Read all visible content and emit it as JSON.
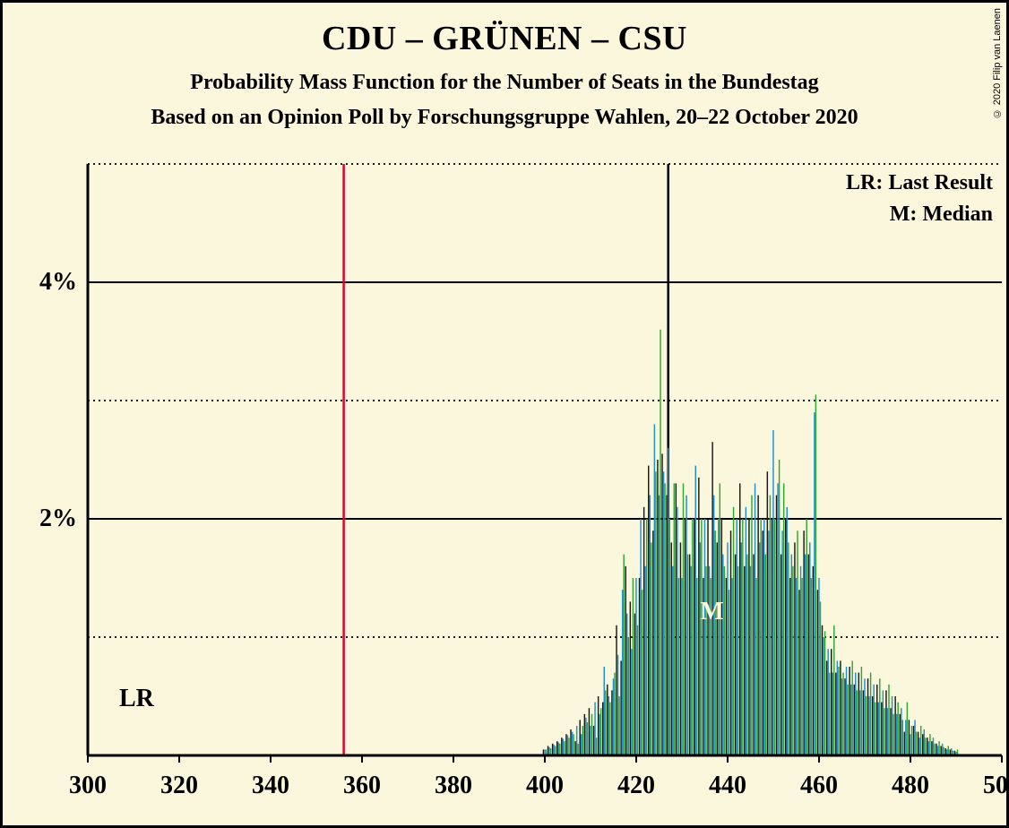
{
  "chart": {
    "type": "bar",
    "background_color": "#fbf7dc",
    "text_color": "#1a1a1a",
    "title": "CDU – GRÜNEN – CSU",
    "title_fontsize": 38,
    "subtitle1": "Probability Mass Function for the Number of Seats in the Bundestag",
    "subtitle2": "Based on an Opinion Poll by Forschungsgruppe Wahlen, 20–22 October 2020",
    "subtitle_fontsize": 24,
    "copyright": "© 2020 Filip van Laenen",
    "xlim": [
      300,
      500
    ],
    "ylim": [
      0,
      5
    ],
    "x_ticks": [
      300,
      320,
      340,
      360,
      380,
      400,
      420,
      440,
      460,
      480,
      500
    ],
    "y_ticks_major": [
      2,
      4
    ],
    "y_ticks_minor": [
      1,
      3,
      5
    ],
    "axis_color": "#000000",
    "gridline_major_color": "#000000",
    "gridline_minor_color": "#000000",
    "gridline_minor_dash": "2,4",
    "axis_width": 2,
    "last_result_x": 356,
    "last_result_color": "#e4002b",
    "last_result_label": "LR",
    "median_x": 427,
    "median_color": "#000000",
    "median_label": "M",
    "median_label_color": "#fbf7dc",
    "legend": {
      "lr": "LR: Last Result",
      "m": "M: Median"
    },
    "bar_colors": [
      "#1a1a1a",
      "#1e90d4",
      "#2fa82f"
    ],
    "bar_group_width": 0.9,
    "bars": [
      {
        "x": 400,
        "v": [
          0.05,
          0.05,
          0.05
        ]
      },
      {
        "x": 401,
        "v": [
          0.08,
          0.07,
          0.06
        ]
      },
      {
        "x": 402,
        "v": [
          0.1,
          0.09,
          0.08
        ]
      },
      {
        "x": 403,
        "v": [
          0.12,
          0.11,
          0.1
        ]
      },
      {
        "x": 404,
        "v": [
          0.15,
          0.14,
          0.12
        ]
      },
      {
        "x": 405,
        "v": [
          0.18,
          0.17,
          0.15
        ]
      },
      {
        "x": 406,
        "v": [
          0.22,
          0.2,
          0.18
        ]
      },
      {
        "x": 407,
        "v": [
          0.12,
          0.25,
          0.1
        ]
      },
      {
        "x": 408,
        "v": [
          0.3,
          0.18,
          0.25
        ]
      },
      {
        "x": 409,
        "v": [
          0.35,
          0.32,
          0.28
        ]
      },
      {
        "x": 410,
        "v": [
          0.4,
          0.25,
          0.35
        ]
      },
      {
        "x": 411,
        "v": [
          0.25,
          0.45,
          0.15
        ]
      },
      {
        "x": 412,
        "v": [
          0.5,
          0.35,
          0.4
        ]
      },
      {
        "x": 413,
        "v": [
          0.45,
          0.75,
          0.55
        ]
      },
      {
        "x": 414,
        "v": [
          0.6,
          0.5,
          0.45
        ]
      },
      {
        "x": 415,
        "v": [
          0.55,
          0.65,
          0.7
        ]
      },
      {
        "x": 416,
        "v": [
          1.1,
          0.85,
          0.5
        ]
      },
      {
        "x": 417,
        "v": [
          0.8,
          1.4,
          1.7
        ]
      },
      {
        "x": 418,
        "v": [
          1.6,
          1.2,
          1.0
        ]
      },
      {
        "x": 419,
        "v": [
          1.3,
          0.9,
          1.5
        ]
      },
      {
        "x": 420,
        "v": [
          1.2,
          1.5,
          1.1
        ]
      },
      {
        "x": 421,
        "v": [
          1.5,
          2.0,
          1.4
        ]
      },
      {
        "x": 422,
        "v": [
          2.1,
          1.6,
          2.0
        ]
      },
      {
        "x": 423,
        "v": [
          2.45,
          2.2,
          1.8
        ]
      },
      {
        "x": 424,
        "v": [
          1.9,
          2.8,
          2.4
        ]
      },
      {
        "x": 425,
        "v": [
          2.5,
          2.2,
          3.6
        ]
      },
      {
        "x": 426,
        "v": [
          2.55,
          2.4,
          2.3
        ]
      },
      {
        "x": 427,
        "v": [
          2.2,
          2.6,
          2.0
        ]
      },
      {
        "x": 428,
        "v": [
          1.8,
          1.6,
          2.3
        ]
      },
      {
        "x": 429,
        "v": [
          2.3,
          2.1,
          1.5
        ]
      },
      {
        "x": 430,
        "v": [
          1.8,
          1.5,
          2.3
        ]
      },
      {
        "x": 431,
        "v": [
          2.0,
          2.2,
          1.7
        ]
      },
      {
        "x": 432,
        "v": [
          1.7,
          1.6,
          2.0
        ]
      },
      {
        "x": 433,
        "v": [
          2.0,
          2.45,
          1.5
        ]
      },
      {
        "x": 434,
        "v": [
          2.35,
          1.8,
          2.0
        ]
      },
      {
        "x": 435,
        "v": [
          1.5,
          2.0,
          1.6
        ]
      },
      {
        "x": 436,
        "v": [
          2.0,
          1.6,
          1.5
        ]
      },
      {
        "x": 437,
        "v": [
          2.65,
          2.2,
          1.9
        ]
      },
      {
        "x": 438,
        "v": [
          1.8,
          2.0,
          2.3
        ]
      },
      {
        "x": 439,
        "v": [
          2.0,
          1.7,
          1.6
        ]
      },
      {
        "x": 440,
        "v": [
          1.5,
          1.8,
          1.4
        ]
      },
      {
        "x": 441,
        "v": [
          1.9,
          1.5,
          2.1
        ]
      },
      {
        "x": 442,
        "v": [
          1.7,
          2.0,
          1.6
        ]
      },
      {
        "x": 443,
        "v": [
          2.3,
          1.8,
          2.0
        ]
      },
      {
        "x": 444,
        "v": [
          1.6,
          2.1,
          1.7
        ]
      },
      {
        "x": 445,
        "v": [
          2.0,
          1.6,
          2.2
        ]
      },
      {
        "x": 446,
        "v": [
          1.7,
          2.3,
          1.5
        ]
      },
      {
        "x": 447,
        "v": [
          2.2,
          1.8,
          2.0
        ]
      },
      {
        "x": 448,
        "v": [
          1.9,
          2.0,
          1.7
        ]
      },
      {
        "x": 449,
        "v": [
          2.4,
          1.9,
          2.2
        ]
      },
      {
        "x": 450,
        "v": [
          2.0,
          2.75,
          2.0
        ]
      },
      {
        "x": 451,
        "v": [
          2.2,
          2.3,
          2.5
        ]
      },
      {
        "x": 452,
        "v": [
          1.7,
          1.9,
          2.3
        ]
      },
      {
        "x": 453,
        "v": [
          2.0,
          2.1,
          1.8
        ]
      },
      {
        "x": 454,
        "v": [
          1.5,
          1.7,
          1.6
        ]
      },
      {
        "x": 455,
        "v": [
          1.8,
          1.5,
          1.9
        ]
      },
      {
        "x": 456,
        "v": [
          1.4,
          1.6,
          1.5
        ]
      },
      {
        "x": 457,
        "v": [
          1.9,
          1.7,
          2.0
        ]
      },
      {
        "x": 458,
        "v": [
          1.7,
          1.8,
          1.5
        ]
      },
      {
        "x": 459,
        "v": [
          1.6,
          2.9,
          3.05
        ]
      },
      {
        "x": 460,
        "v": [
          1.4,
          1.5,
          1.3
        ]
      },
      {
        "x": 461,
        "v": [
          1.1,
          1.0,
          1.05
        ]
      },
      {
        "x": 462,
        "v": [
          0.8,
          0.9,
          0.7
        ]
      },
      {
        "x": 463,
        "v": [
          0.9,
          0.7,
          1.1
        ]
      },
      {
        "x": 464,
        "v": [
          0.7,
          0.8,
          0.75
        ]
      },
      {
        "x": 465,
        "v": [
          0.8,
          0.65,
          0.7
        ]
      },
      {
        "x": 466,
        "v": [
          0.65,
          0.75,
          0.6
        ]
      },
      {
        "x": 467,
        "v": [
          0.75,
          0.6,
          0.8
        ]
      },
      {
        "x": 468,
        "v": [
          0.6,
          0.7,
          0.55
        ]
      },
      {
        "x": 469,
        "v": [
          0.7,
          0.55,
          0.75
        ]
      },
      {
        "x": 470,
        "v": [
          0.55,
          0.65,
          0.5
        ]
      },
      {
        "x": 471,
        "v": [
          0.65,
          0.5,
          0.7
        ]
      },
      {
        "x": 472,
        "v": [
          0.5,
          0.6,
          0.45
        ]
      },
      {
        "x": 473,
        "v": [
          0.6,
          0.45,
          0.65
        ]
      },
      {
        "x": 474,
        "v": [
          0.45,
          0.55,
          0.4
        ]
      },
      {
        "x": 475,
        "v": [
          0.55,
          0.4,
          0.6
        ]
      },
      {
        "x": 476,
        "v": [
          0.4,
          0.5,
          0.35
        ]
      },
      {
        "x": 477,
        "v": [
          0.5,
          0.35,
          0.45
        ]
      },
      {
        "x": 478,
        "v": [
          0.35,
          0.4,
          0.3
        ]
      },
      {
        "x": 479,
        "v": [
          0.2,
          0.3,
          0.45
        ]
      },
      {
        "x": 480,
        "v": [
          0.3,
          0.18,
          0.25
        ]
      },
      {
        "x": 481,
        "v": [
          0.25,
          0.3,
          0.2
        ]
      },
      {
        "x": 482,
        "v": [
          0.2,
          0.15,
          0.25
        ]
      },
      {
        "x": 483,
        "v": [
          0.18,
          0.22,
          0.15
        ]
      },
      {
        "x": 484,
        "v": [
          0.15,
          0.12,
          0.18
        ]
      },
      {
        "x": 485,
        "v": [
          0.12,
          0.15,
          0.1
        ]
      },
      {
        "x": 486,
        "v": [
          0.1,
          0.08,
          0.12
        ]
      },
      {
        "x": 487,
        "v": [
          0.08,
          0.1,
          0.07
        ]
      },
      {
        "x": 488,
        "v": [
          0.06,
          0.05,
          0.08
        ]
      },
      {
        "x": 489,
        "v": [
          0.05,
          0.06,
          0.04
        ]
      },
      {
        "x": 490,
        "v": [
          0.04,
          0.03,
          0.05
        ]
      }
    ]
  }
}
